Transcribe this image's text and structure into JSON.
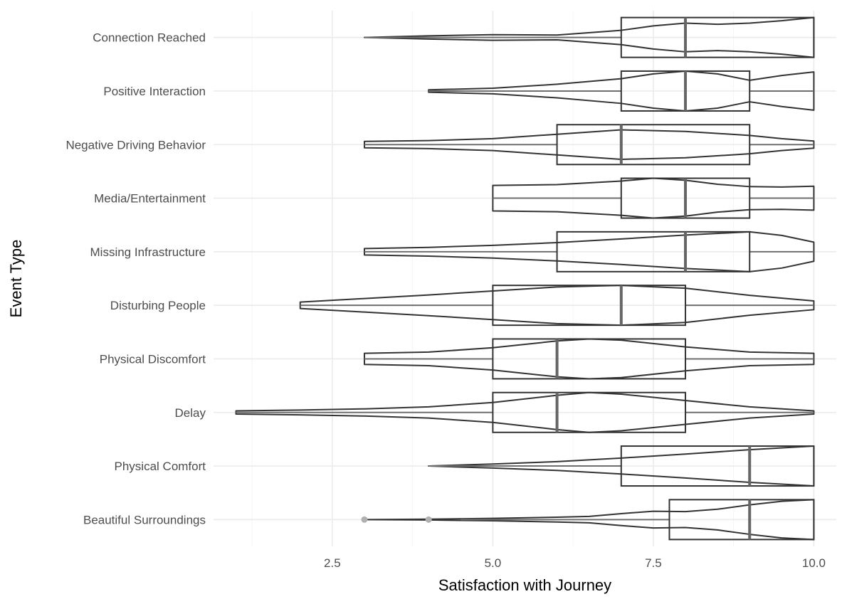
{
  "chart_data": {
    "type": "violin-boxplot",
    "orientation": "horizontal",
    "xlabel": "Satisfaction with Journey",
    "ylabel": "Event Type",
    "xlim": [
      0.65,
      10.35
    ],
    "xticks": [
      2.5,
      5.0,
      7.5,
      10.0
    ],
    "xtick_labels": [
      "2.5",
      "5.0",
      "7.5",
      "10.0"
    ],
    "grid": true,
    "legend": "none",
    "colors": {
      "outline": "#333333",
      "whisker": "#6e6e6e",
      "median": "#666666",
      "outlier": "#b0b0b0"
    },
    "categories": [
      "Connection Reached",
      "Positive Interaction",
      "Negative Driving Behavior",
      "Media/Entertainment",
      "Missing Infrastructure",
      "Disturbing People",
      "Physical Discomfort",
      "Delay",
      "Physical Comfort",
      "Beautiful Surroundings"
    ],
    "series": [
      {
        "category": "Connection Reached",
        "min": 3,
        "q1": 7,
        "median": 8,
        "q3": 10,
        "max": 10,
        "outliers": [],
        "violin": [
          [
            3,
            0.0
          ],
          [
            3.5,
            0.04
          ],
          [
            4,
            0.08
          ],
          [
            5,
            0.14
          ],
          [
            6,
            0.12
          ],
          [
            7,
            0.36
          ],
          [
            7.5,
            0.58
          ],
          [
            8,
            0.72
          ],
          [
            8.5,
            0.66
          ],
          [
            9,
            0.72
          ],
          [
            9.5,
            0.84
          ],
          [
            10,
            1.0
          ]
        ]
      },
      {
        "category": "Positive Interaction",
        "min": 4,
        "q1": 7,
        "median": 8,
        "q3": 9,
        "max": 10,
        "outliers": [],
        "violin": [
          [
            4,
            0.06
          ],
          [
            5,
            0.14
          ],
          [
            6,
            0.34
          ],
          [
            7,
            0.62
          ],
          [
            7.5,
            0.86
          ],
          [
            8,
            1.0
          ],
          [
            8.5,
            0.86
          ],
          [
            9,
            0.54
          ],
          [
            9.5,
            0.78
          ],
          [
            10,
            0.96
          ]
        ]
      },
      {
        "category": "Negative Driving Behavior",
        "min": 3,
        "q1": 6,
        "median": 7,
        "q3": 9,
        "max": 10,
        "outliers": [],
        "violin": [
          [
            3,
            0.16
          ],
          [
            4,
            0.2
          ],
          [
            5,
            0.3
          ],
          [
            6,
            0.52
          ],
          [
            7,
            0.74
          ],
          [
            8,
            0.66
          ],
          [
            9,
            0.46
          ],
          [
            9.5,
            0.3
          ],
          [
            10,
            0.18
          ]
        ]
      },
      {
        "category": "Media/Entertainment",
        "min": 5,
        "q1": 7,
        "median": 8,
        "q3": 9,
        "max": 10,
        "outliers": [],
        "violin": [
          [
            5,
            0.64
          ],
          [
            6,
            0.68
          ],
          [
            7,
            0.86
          ],
          [
            7.5,
            1.0
          ],
          [
            8,
            0.9
          ],
          [
            8.5,
            0.7
          ],
          [
            9,
            0.58
          ],
          [
            9.5,
            0.56
          ],
          [
            10,
            0.6
          ]
        ]
      },
      {
        "category": "Missing Infrastructure",
        "min": 3,
        "q1": 6,
        "median": 8,
        "q3": 9,
        "max": 10,
        "outliers": [],
        "violin": [
          [
            3,
            0.16
          ],
          [
            4,
            0.22
          ],
          [
            5,
            0.32
          ],
          [
            6,
            0.46
          ],
          [
            7,
            0.64
          ],
          [
            8,
            0.84
          ],
          [
            9,
            1.0
          ],
          [
            9.5,
            0.82
          ],
          [
            10,
            0.48
          ]
        ]
      },
      {
        "category": "Disturbing People",
        "min": 2,
        "q1": 5,
        "median": 7,
        "q3": 8,
        "max": 10,
        "outliers": [],
        "violin": [
          [
            2,
            0.16
          ],
          [
            3,
            0.34
          ],
          [
            4,
            0.52
          ],
          [
            5,
            0.72
          ],
          [
            6,
            0.92
          ],
          [
            7,
            1.0
          ],
          [
            8,
            0.86
          ],
          [
            9,
            0.5
          ],
          [
            10,
            0.22
          ]
        ]
      },
      {
        "category": "Physical Discomfort",
        "min": 3,
        "q1": 5,
        "median": 6,
        "q3": 8,
        "max": 10,
        "outliers": [],
        "violin": [
          [
            3,
            0.28
          ],
          [
            4,
            0.34
          ],
          [
            5,
            0.56
          ],
          [
            6,
            0.9
          ],
          [
            6.5,
            1.0
          ],
          [
            7,
            0.94
          ],
          [
            8,
            0.6
          ],
          [
            9,
            0.34
          ],
          [
            10,
            0.28
          ]
        ]
      },
      {
        "category": "Delay",
        "min": 1,
        "q1": 5,
        "median": 6,
        "q3": 8,
        "max": 10,
        "outliers": [],
        "violin": [
          [
            1,
            0.08
          ],
          [
            2,
            0.12
          ],
          [
            3,
            0.18
          ],
          [
            4,
            0.28
          ],
          [
            5,
            0.5
          ],
          [
            6,
            0.86
          ],
          [
            6.5,
            1.0
          ],
          [
            7,
            0.92
          ],
          [
            8,
            0.6
          ],
          [
            9,
            0.28
          ],
          [
            10,
            0.08
          ]
        ]
      },
      {
        "category": "Physical Comfort",
        "min": 4,
        "q1": 7,
        "median": 9,
        "q3": 10,
        "max": 10,
        "outliers": [],
        "violin": [
          [
            4,
            0.0
          ],
          [
            5,
            0.1
          ],
          [
            6,
            0.22
          ],
          [
            7,
            0.4
          ],
          [
            8,
            0.6
          ],
          [
            9,
            0.82
          ],
          [
            10,
            1.0
          ]
        ]
      },
      {
        "category": "Beautiful Surroundings",
        "min": 4.5,
        "q1": 7.75,
        "median": 9,
        "q3": 10,
        "max": 10,
        "outliers": [
          3,
          4
        ],
        "violin": [
          [
            3,
            0.0
          ],
          [
            4,
            0.02
          ],
          [
            5,
            0.06
          ],
          [
            6,
            0.12
          ],
          [
            6.5,
            0.16
          ],
          [
            7,
            0.3
          ],
          [
            7.5,
            0.42
          ],
          [
            8,
            0.4
          ],
          [
            8.5,
            0.52
          ],
          [
            9,
            0.74
          ],
          [
            9.5,
            0.92
          ],
          [
            10,
            1.0
          ]
        ]
      }
    ]
  }
}
